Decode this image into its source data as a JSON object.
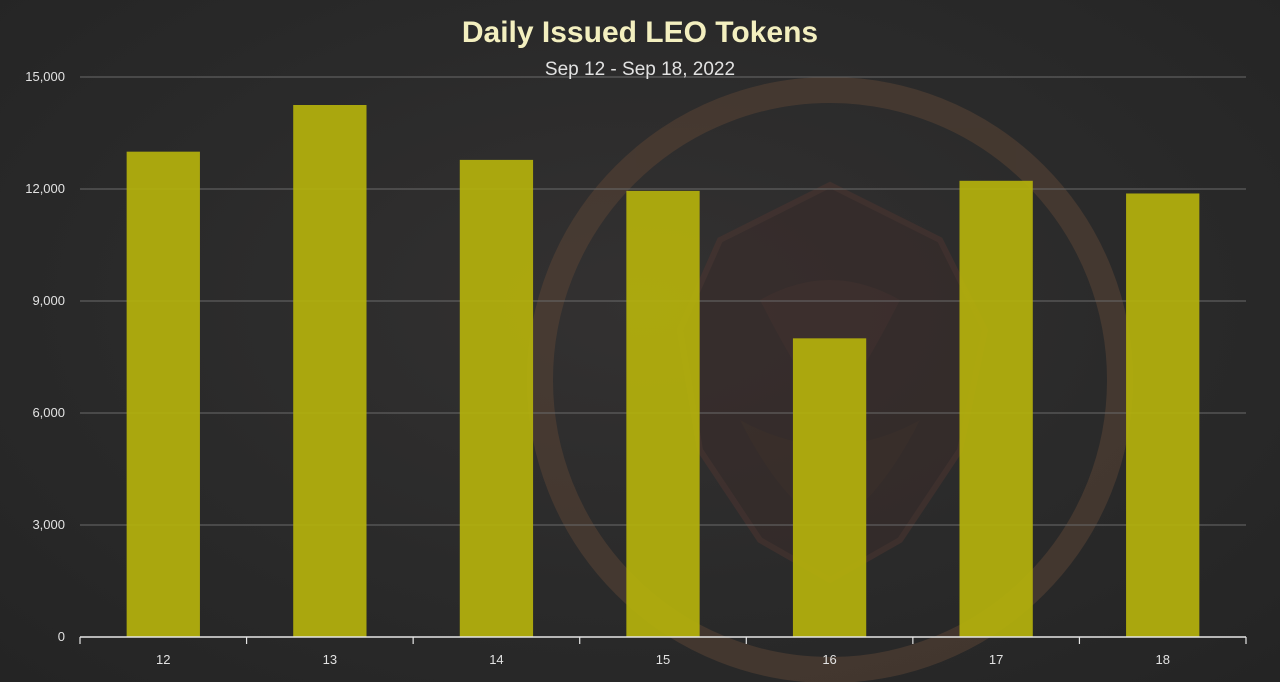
{
  "colors": {
    "background": "#2b2b2b",
    "bar": "#b5b20c",
    "title": "#f3efbf",
    "text": "#e2e2e2",
    "grid": "#6a6a6a",
    "axis": "#e6e6e6",
    "watermark": "#7a4a36"
  },
  "chart_data": {
    "type": "bar",
    "title": "Daily Issued LEO Tokens",
    "subtitle": "Sep 12 - Sep 18, 2022",
    "xlabel": "",
    "ylabel": "",
    "categories": [
      "12",
      "13",
      "14",
      "15",
      "16",
      "17",
      "18"
    ],
    "series": [
      {
        "values": [
          13000,
          14250,
          12780,
          11950,
          8000,
          12220,
          11880
        ]
      }
    ],
    "ylim": [
      0,
      15000
    ],
    "yticks": [
      0,
      3000,
      6000,
      9000,
      12000,
      15000
    ],
    "ytick_labels": [
      "0",
      "3,000",
      "6,000",
      "9,000",
      "12,000",
      "15,000"
    ],
    "grid": true,
    "legend": "none",
    "watermark": "leo-lion-logo"
  }
}
